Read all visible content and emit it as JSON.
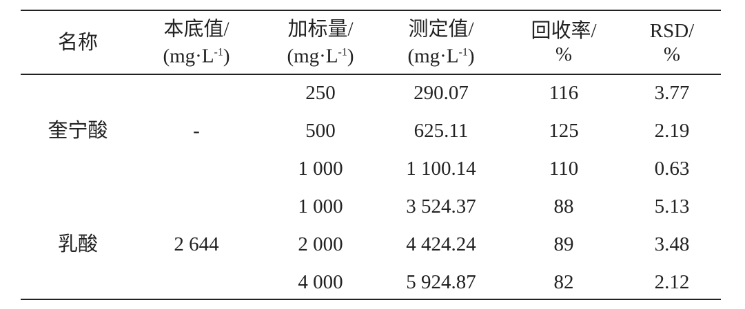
{
  "table": {
    "header": [
      {
        "line1": "名称"
      },
      {
        "line1": "本底值/",
        "unit_pre": "(mg·L",
        "unit_sup": "-1",
        "unit_post": ")"
      },
      {
        "line1": "加标量/",
        "unit_pre": "(mg·L",
        "unit_sup": "-1",
        "unit_post": ")"
      },
      {
        "line1": "测定值/",
        "unit_pre": "(mg·L",
        "unit_sup": "-1",
        "unit_post": ")"
      },
      {
        "line1": "回收率/",
        "line2": "%"
      },
      {
        "line1": "RSD/",
        "line2": "%"
      }
    ],
    "groups": [
      {
        "name": "奎宁酸",
        "background": "-",
        "rows": [
          [
            "250",
            "290.07",
            "116",
            "3.77"
          ],
          [
            "500",
            "625.11",
            "125",
            "2.19"
          ],
          [
            "1 000",
            "1 100.14",
            "110",
            "0.63"
          ]
        ]
      },
      {
        "name": "乳酸",
        "background": "2 644",
        "rows": [
          [
            "1 000",
            "3 524.37",
            "88",
            "5.13"
          ],
          [
            "2 000",
            "4 424.24",
            "89",
            "3.48"
          ],
          [
            "4 000",
            "5 924.87",
            "82",
            "2.12"
          ]
        ]
      }
    ]
  }
}
